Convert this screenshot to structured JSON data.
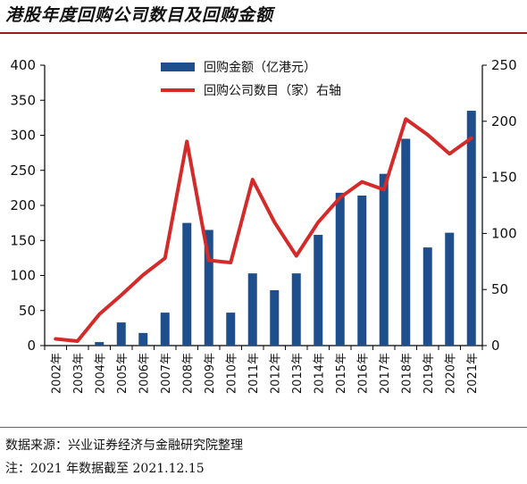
{
  "title": "港股年度回购公司数目及回购金额",
  "source": "数据来源：兴业证券经济与金融研究院整理",
  "note": "注：2021 年数据截至 2021.12.15",
  "chart_data": {
    "type": "bar",
    "categories": [
      "2002年",
      "2003年",
      "2004年",
      "2005年",
      "2006年",
      "2007年",
      "2008年",
      "2009年",
      "2010年",
      "2011年",
      "2012年",
      "2013年",
      "2014年",
      "2015年",
      "2016年",
      "2017年",
      "2018年",
      "2019年",
      "2020年",
      "2021年"
    ],
    "series": [
      {
        "name": "回购金额（亿港元）",
        "type": "bar",
        "axis": "left",
        "color": "#1f4e8c",
        "values": [
          0,
          0,
          5,
          33,
          18,
          47,
          175,
          165,
          47,
          103,
          79,
          103,
          158,
          218,
          214,
          245,
          295,
          140,
          161,
          335
        ]
      },
      {
        "name": "回购公司数目（家）右轴",
        "type": "line",
        "axis": "right",
        "color": "#d42a2a",
        "values": [
          6,
          4,
          28,
          45,
          63,
          78,
          182,
          76,
          74,
          148,
          110,
          80,
          110,
          132,
          146,
          139,
          202,
          188,
          171,
          185
        ]
      }
    ],
    "y_left": {
      "ylim": [
        0,
        400
      ],
      "ticks": [
        "0",
        "50",
        "100",
        "150",
        "200",
        "250",
        "300",
        "350",
        "400"
      ]
    },
    "y_right": {
      "ylim": [
        0,
        250
      ],
      "ticks": [
        "0",
        "50",
        "100",
        "150",
        "200",
        "250"
      ]
    },
    "grid": false,
    "legend_position": "top-center"
  }
}
